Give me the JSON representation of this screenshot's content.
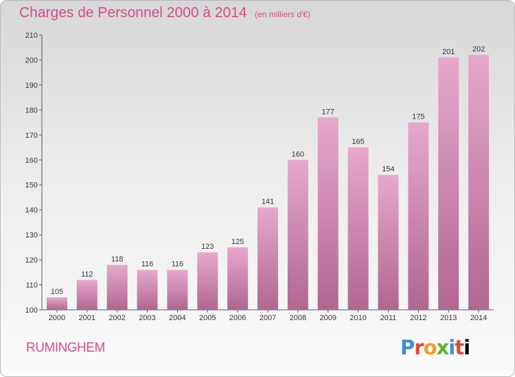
{
  "header": {
    "title": "Charges de Personnel 2000 à 2014",
    "subtitle": "(en milliers d'€)"
  },
  "footer": {
    "commune": "RUMINGHEM",
    "logo": [
      "P",
      "r",
      "o",
      "x",
      "i",
      "t",
      "i"
    ]
  },
  "colors": {
    "bar_top": "#e7a8cc",
    "bar_bottom": "#b06790",
    "accent": "#d14d8a"
  },
  "chart_data": {
    "type": "bar",
    "title": "Charges de Personnel 2000 à 2014",
    "subtitle": "(en milliers d'€)",
    "categories": [
      "2000",
      "2001",
      "2002",
      "2003",
      "2004",
      "2005",
      "2006",
      "2007",
      "2008",
      "2009",
      "2010",
      "2011",
      "2012",
      "2013",
      "2014"
    ],
    "values": [
      105,
      112,
      118,
      116,
      116,
      123,
      125,
      141,
      160,
      177,
      165,
      154,
      175,
      201,
      202
    ],
    "yticks": [
      100,
      110,
      120,
      130,
      140,
      150,
      160,
      170,
      180,
      190,
      200,
      210
    ],
    "ylim": [
      100,
      210
    ],
    "grid": false,
    "data_labels": true
  }
}
